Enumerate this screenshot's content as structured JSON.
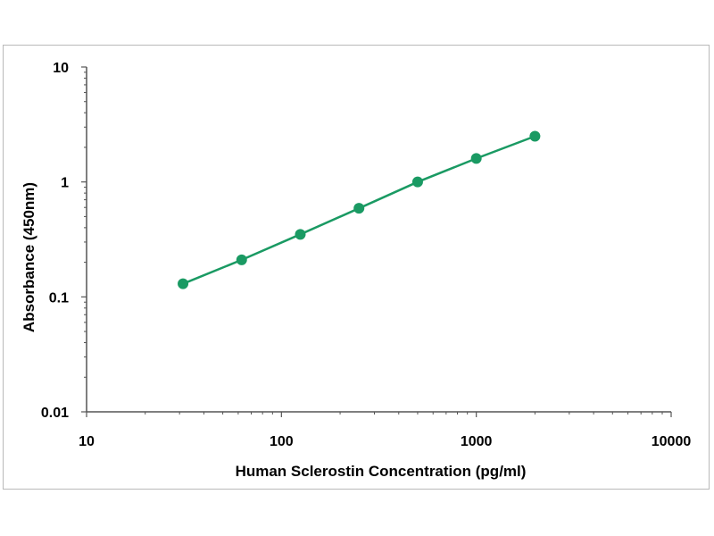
{
  "chart_data": {
    "type": "scatter",
    "xlabel": "Human Sclerostin Concentration (pg/ml)",
    "ylabel": "Absorbance (450nm)",
    "xscale": "log",
    "yscale": "log",
    "xlim": [
      10,
      10000
    ],
    "ylim": [
      0.01,
      10
    ],
    "x_ticks": [
      {
        "value": 10,
        "label": "10"
      },
      {
        "value": 100,
        "label": "100"
      },
      {
        "value": 1000,
        "label": "1000"
      },
      {
        "value": 10000,
        "label": "10000"
      }
    ],
    "y_ticks": [
      {
        "value": 0.01,
        "label": "0.01"
      },
      {
        "value": 0.1,
        "label": "0.1"
      },
      {
        "value": 1,
        "label": "1"
      },
      {
        "value": 10,
        "label": "10"
      }
    ],
    "grid": false,
    "legend": false,
    "color": "#1a9a63",
    "series": [
      {
        "x": [
          31.25,
          62.5,
          125,
          250,
          500,
          1000,
          2000
        ],
        "y": [
          0.13,
          0.21,
          0.35,
          0.59,
          1.0,
          1.6,
          2.5
        ]
      }
    ]
  }
}
